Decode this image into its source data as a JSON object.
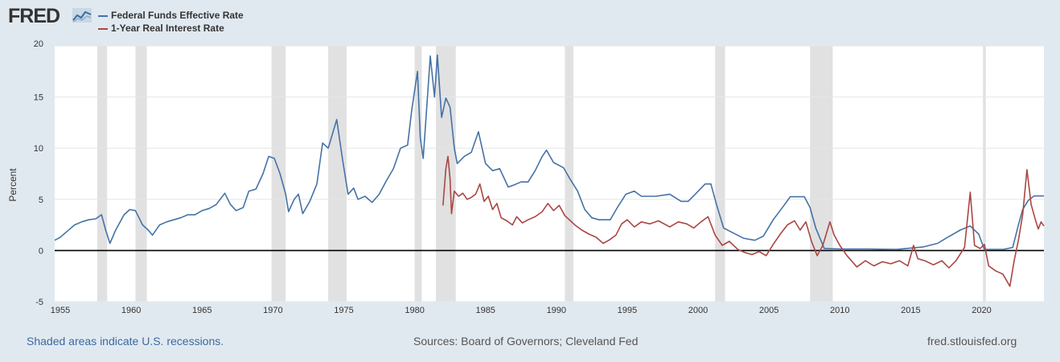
{
  "header": {
    "logo_text": "FRED",
    "logo_icon": "chart-icon"
  },
  "colors": {
    "background": "#e1e9f0",
    "plot_bg": "#ffffff",
    "recession": "#e1e1e1",
    "series_ffr": "#4572a7",
    "series_real": "#aa4643",
    "zero_line": "#000000",
    "link": "#3b6aa0"
  },
  "footer": {
    "left": "Shaded areas indicate U.S. recessions.",
    "center": "Sources: Board of Governors; Cleveland Fed",
    "right": "fred.stlouisfed.org"
  },
  "chart_data": {
    "type": "line",
    "title": "",
    "xlabel": "",
    "ylabel": "Percent",
    "xlim": [
      1954.6,
      2024.4
    ],
    "ylim": [
      -5,
      20
    ],
    "yticks": [
      -5,
      0,
      5,
      10,
      15,
      20
    ],
    "xticks": [
      1955,
      1960,
      1965,
      1970,
      1975,
      1980,
      1985,
      1990,
      1995,
      2000,
      2005,
      2010,
      2015,
      2020
    ],
    "grid": "horizontal",
    "legend_position": "top-left",
    "recessions": [
      [
        1957.6,
        1958.3
      ],
      [
        1960.3,
        1961.1
      ],
      [
        1969.9,
        1970.9
      ],
      [
        1973.9,
        1975.2
      ],
      [
        1980.0,
        1980.5
      ],
      [
        1981.5,
        1982.9
      ],
      [
        1990.6,
        1991.2
      ],
      [
        2001.2,
        2001.9
      ],
      [
        2007.9,
        2009.5
      ],
      [
        2020.1,
        2020.3
      ]
    ],
    "series": [
      {
        "name": "Federal Funds Effective Rate",
        "color": "#4572a7",
        "points": [
          [
            1954.6,
            1.0
          ],
          [
            1955.0,
            1.3
          ],
          [
            1955.5,
            1.9
          ],
          [
            1956.0,
            2.5
          ],
          [
            1956.5,
            2.8
          ],
          [
            1957.0,
            3.0
          ],
          [
            1957.5,
            3.1
          ],
          [
            1957.9,
            3.5
          ],
          [
            1958.2,
            2.0
          ],
          [
            1958.5,
            0.7
          ],
          [
            1958.9,
            2.0
          ],
          [
            1959.5,
            3.5
          ],
          [
            1959.9,
            4.0
          ],
          [
            1960.3,
            3.9
          ],
          [
            1960.8,
            2.5
          ],
          [
            1961.2,
            2.0
          ],
          [
            1961.5,
            1.5
          ],
          [
            1962.0,
            2.5
          ],
          [
            1962.5,
            2.8
          ],
          [
            1963.0,
            3.0
          ],
          [
            1963.5,
            3.2
          ],
          [
            1964.0,
            3.5
          ],
          [
            1964.5,
            3.5
          ],
          [
            1965.0,
            3.9
          ],
          [
            1965.5,
            4.1
          ],
          [
            1966.0,
            4.5
          ],
          [
            1966.6,
            5.6
          ],
          [
            1967.0,
            4.5
          ],
          [
            1967.4,
            3.9
          ],
          [
            1967.9,
            4.2
          ],
          [
            1968.3,
            5.8
          ],
          [
            1968.8,
            6.0
          ],
          [
            1969.3,
            7.5
          ],
          [
            1969.7,
            9.2
          ],
          [
            1970.1,
            9.0
          ],
          [
            1970.5,
            7.5
          ],
          [
            1970.9,
            5.5
          ],
          [
            1971.1,
            3.8
          ],
          [
            1971.5,
            5.0
          ],
          [
            1971.8,
            5.5
          ],
          [
            1972.1,
            3.6
          ],
          [
            1972.6,
            4.8
          ],
          [
            1973.1,
            6.5
          ],
          [
            1973.5,
            10.5
          ],
          [
            1973.9,
            10.0
          ],
          [
            1974.5,
            12.8
          ],
          [
            1974.9,
            9.0
          ],
          [
            1975.3,
            5.5
          ],
          [
            1975.7,
            6.1
          ],
          [
            1976.0,
            5.0
          ],
          [
            1976.5,
            5.3
          ],
          [
            1977.0,
            4.7
          ],
          [
            1977.5,
            5.5
          ],
          [
            1978.0,
            6.8
          ],
          [
            1978.5,
            8.0
          ],
          [
            1979.0,
            10.0
          ],
          [
            1979.5,
            10.3
          ],
          [
            1979.8,
            13.8
          ],
          [
            1980.2,
            17.5
          ],
          [
            1980.4,
            11.0
          ],
          [
            1980.6,
            9.0
          ],
          [
            1980.9,
            15.0
          ],
          [
            1981.1,
            19.0
          ],
          [
            1981.4,
            15.0
          ],
          [
            1981.6,
            19.1
          ],
          [
            1981.9,
            13.0
          ],
          [
            1982.2,
            14.9
          ],
          [
            1982.5,
            14.0
          ],
          [
            1982.8,
            10.0
          ],
          [
            1983.0,
            8.5
          ],
          [
            1983.5,
            9.2
          ],
          [
            1984.0,
            9.6
          ],
          [
            1984.5,
            11.6
          ],
          [
            1985.0,
            8.5
          ],
          [
            1985.5,
            7.8
          ],
          [
            1986.0,
            8.0
          ],
          [
            1986.6,
            6.2
          ],
          [
            1987.0,
            6.4
          ],
          [
            1987.5,
            6.7
          ],
          [
            1988.0,
            6.7
          ],
          [
            1988.5,
            7.8
          ],
          [
            1989.0,
            9.2
          ],
          [
            1989.3,
            9.8
          ],
          [
            1989.8,
            8.6
          ],
          [
            1990.5,
            8.1
          ],
          [
            1991.0,
            6.9
          ],
          [
            1991.5,
            5.8
          ],
          [
            1992.0,
            4.0
          ],
          [
            1992.5,
            3.2
          ],
          [
            1993.0,
            3.0
          ],
          [
            1993.8,
            3.0
          ],
          [
            1994.3,
            4.2
          ],
          [
            1994.9,
            5.5
          ],
          [
            1995.5,
            5.8
          ],
          [
            1996.0,
            5.3
          ],
          [
            1996.5,
            5.3
          ],
          [
            1997.0,
            5.3
          ],
          [
            1998.0,
            5.5
          ],
          [
            1998.8,
            4.8
          ],
          [
            1999.3,
            4.8
          ],
          [
            1999.8,
            5.5
          ],
          [
            2000.5,
            6.5
          ],
          [
            2000.9,
            6.5
          ],
          [
            2001.3,
            4.5
          ],
          [
            2001.8,
            2.2
          ],
          [
            2002.5,
            1.7
          ],
          [
            2003.2,
            1.2
          ],
          [
            2004.0,
            1.0
          ],
          [
            2004.6,
            1.4
          ],
          [
            2005.3,
            3.0
          ],
          [
            2006.0,
            4.3
          ],
          [
            2006.5,
            5.25
          ],
          [
            2007.5,
            5.25
          ],
          [
            2007.9,
            4.2
          ],
          [
            2008.3,
            2.2
          ],
          [
            2008.9,
            0.2
          ],
          [
            2010.0,
            0.15
          ],
          [
            2012.0,
            0.15
          ],
          [
            2014.0,
            0.1
          ],
          [
            2015.9,
            0.35
          ],
          [
            2016.9,
            0.7
          ],
          [
            2017.5,
            1.2
          ],
          [
            2018.5,
            2.0
          ],
          [
            2019.2,
            2.4
          ],
          [
            2019.8,
            1.6
          ],
          [
            2020.2,
            0.1
          ],
          [
            2021.5,
            0.1
          ],
          [
            2022.2,
            0.3
          ],
          [
            2022.6,
            2.5
          ],
          [
            2022.9,
            4.0
          ],
          [
            2023.3,
            4.9
          ],
          [
            2023.7,
            5.33
          ],
          [
            2024.4,
            5.33
          ]
        ]
      },
      {
        "name": "1-Year Real Interest Rate",
        "color": "#aa4643",
        "points": [
          [
            1982.0,
            4.4
          ],
          [
            1982.2,
            8.0
          ],
          [
            1982.35,
            9.2
          ],
          [
            1982.5,
            7.0
          ],
          [
            1982.6,
            3.6
          ],
          [
            1982.8,
            5.8
          ],
          [
            1983.1,
            5.3
          ],
          [
            1983.4,
            5.6
          ],
          [
            1983.7,
            5.0
          ],
          [
            1984.0,
            5.2
          ],
          [
            1984.3,
            5.5
          ],
          [
            1984.6,
            6.5
          ],
          [
            1984.9,
            4.8
          ],
          [
            1985.2,
            5.3
          ],
          [
            1985.5,
            4.0
          ],
          [
            1985.8,
            4.6
          ],
          [
            1986.1,
            3.2
          ],
          [
            1986.5,
            2.9
          ],
          [
            1986.9,
            2.5
          ],
          [
            1987.2,
            3.3
          ],
          [
            1987.6,
            2.7
          ],
          [
            1988.0,
            3.0
          ],
          [
            1988.5,
            3.3
          ],
          [
            1989.0,
            3.8
          ],
          [
            1989.4,
            4.6
          ],
          [
            1989.8,
            3.9
          ],
          [
            1990.2,
            4.4
          ],
          [
            1990.6,
            3.4
          ],
          [
            1991.0,
            2.9
          ],
          [
            1991.3,
            2.5
          ],
          [
            1991.8,
            2.0
          ],
          [
            1992.3,
            1.6
          ],
          [
            1992.8,
            1.3
          ],
          [
            1993.3,
            0.7
          ],
          [
            1993.7,
            1.0
          ],
          [
            1994.2,
            1.5
          ],
          [
            1994.6,
            2.6
          ],
          [
            1995.0,
            3.0
          ],
          [
            1995.5,
            2.3
          ],
          [
            1996.0,
            2.8
          ],
          [
            1996.6,
            2.6
          ],
          [
            1997.2,
            2.9
          ],
          [
            1998.0,
            2.3
          ],
          [
            1998.6,
            2.8
          ],
          [
            1999.2,
            2.6
          ],
          [
            1999.7,
            2.2
          ],
          [
            2000.2,
            2.8
          ],
          [
            2000.7,
            3.3
          ],
          [
            2001.2,
            1.5
          ],
          [
            2001.7,
            0.5
          ],
          [
            2002.2,
            0.9
          ],
          [
            2002.8,
            0.1
          ],
          [
            2003.3,
            -0.2
          ],
          [
            2003.8,
            -0.4
          ],
          [
            2004.3,
            -0.1
          ],
          [
            2004.8,
            -0.5
          ],
          [
            2005.3,
            0.6
          ],
          [
            2005.8,
            1.6
          ],
          [
            2006.3,
            2.5
          ],
          [
            2006.8,
            2.9
          ],
          [
            2007.2,
            2.0
          ],
          [
            2007.6,
            2.8
          ],
          [
            2008.0,
            0.9
          ],
          [
            2008.4,
            -0.5
          ],
          [
            2008.8,
            0.5
          ],
          [
            2009.3,
            2.8
          ],
          [
            2009.6,
            1.5
          ],
          [
            2010.0,
            0.5
          ],
          [
            2010.5,
            -0.5
          ],
          [
            2011.2,
            -1.6
          ],
          [
            2011.8,
            -1.0
          ],
          [
            2012.4,
            -1.5
          ],
          [
            2013.0,
            -1.1
          ],
          [
            2013.6,
            -1.3
          ],
          [
            2014.2,
            -1.0
          ],
          [
            2014.8,
            -1.5
          ],
          [
            2015.2,
            0.5
          ],
          [
            2015.5,
            -0.8
          ],
          [
            2016.0,
            -1.0
          ],
          [
            2016.6,
            -1.4
          ],
          [
            2017.2,
            -1.0
          ],
          [
            2017.7,
            -1.7
          ],
          [
            2018.2,
            -1.0
          ],
          [
            2018.8,
            0.3
          ],
          [
            2019.2,
            5.7
          ],
          [
            2019.5,
            0.5
          ],
          [
            2019.9,
            0.2
          ],
          [
            2020.2,
            0.6
          ],
          [
            2020.5,
            -1.5
          ],
          [
            2021.0,
            -2.0
          ],
          [
            2021.5,
            -2.3
          ],
          [
            2022.0,
            -3.5
          ],
          [
            2022.3,
            -1.0
          ],
          [
            2022.6,
            1.0
          ],
          [
            2022.9,
            3.5
          ],
          [
            2023.2,
            7.9
          ],
          [
            2023.5,
            4.5
          ],
          [
            2023.8,
            3.0
          ],
          [
            2024.0,
            2.1
          ],
          [
            2024.2,
            2.8
          ],
          [
            2024.4,
            2.4
          ]
        ]
      }
    ]
  }
}
